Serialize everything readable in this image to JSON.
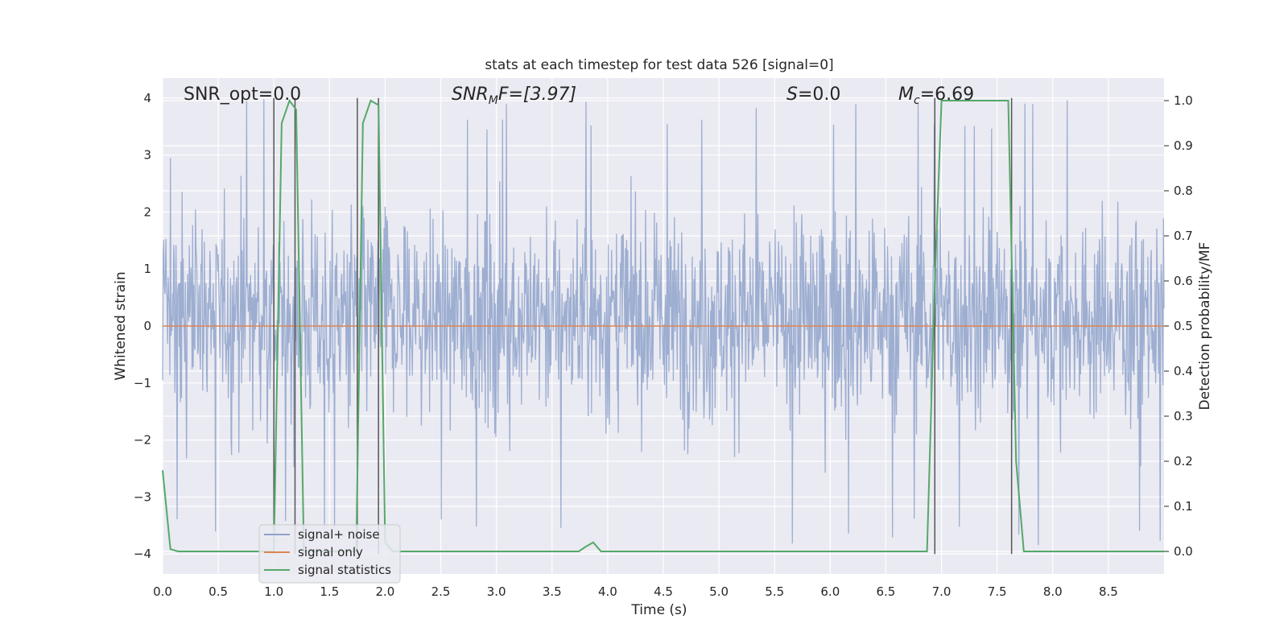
{
  "chart_data": {
    "type": "line",
    "title": "stats at each timestep for test data 526 [signal=0]",
    "xlabel": "Time (s)",
    "ylabel": "Whitened strain",
    "ylabel_right": "Detection probability/MF",
    "xlim": [
      0,
      9
    ],
    "ylim": [
      -4.35,
      4.35
    ],
    "ylim_right": [
      -0.05,
      1.05
    ],
    "x_ticks": [
      "0.0",
      "0.5",
      "1.0",
      "1.5",
      "2.0",
      "2.5",
      "3.0",
      "3.5",
      "4.0",
      "4.5",
      "5.0",
      "5.5",
      "6.0",
      "6.5",
      "7.0",
      "7.5",
      "8.0",
      "8.5"
    ],
    "y_ticks": [
      "4",
      "3",
      "2",
      "1",
      "0",
      "−1",
      "−2",
      "−3",
      "−4"
    ],
    "y_right_ticks": [
      "0.0",
      "0.1",
      "0.2",
      "0.3",
      "0.4",
      "0.5",
      "0.6",
      "0.7",
      "0.8",
      "0.9",
      "1.0"
    ],
    "grid": true,
    "legend_position": "bottom-left",
    "annotations": {
      "snr_opt": "SNR_opt=0.0",
      "snr_mf_main": "SNR",
      "snr_mf_sub": "M",
      "snr_mf_tail": "F=[3.97]",
      "s_main": "S",
      "s_tail": "=0.0",
      "mc_main": "M",
      "mc_sub": "c",
      "mc_tail": "=6.69"
    },
    "series": [
      {
        "name": "signal+ noise",
        "color": "#8fa3cb",
        "description_level": "noise envelope",
        "amplitude_envelope": {
          "typical_max": 2.3,
          "typical_min": -1.8,
          "peak_max": 4.0,
          "peak_min": -3.9
        },
        "x_range": [
          0,
          9
        ]
      },
      {
        "name": "signal only",
        "color": "#dd8452",
        "x": [
          0,
          9
        ],
        "y": [
          0,
          0
        ]
      },
      {
        "name": "signal statistics",
        "color": "#55a868",
        "axis": "right",
        "x": [
          0.0,
          0.07,
          0.14,
          0.9,
          1.0,
          1.07,
          1.14,
          1.2,
          1.27,
          1.74,
          1.8,
          1.87,
          1.94,
          2.0,
          2.07,
          3.74,
          3.8,
          3.87,
          3.94,
          4.0,
          6.87,
          6.94,
          7.0,
          7.07,
          7.6,
          7.67,
          7.74,
          7.8,
          9.0
        ],
        "y": [
          0.18,
          0.005,
          0.0,
          0.0,
          0.0,
          0.95,
          1.0,
          0.98,
          0.0,
          0.0,
          0.95,
          1.0,
          0.99,
          0.02,
          0.0,
          0.0,
          0.01,
          0.02,
          0.0,
          0.0,
          0.0,
          0.6,
          1.0,
          1.0,
          1.0,
          0.2,
          0.0,
          0.0,
          0.0
        ]
      }
    ],
    "vertical_markers": [
      1.0,
      1.19,
      1.75,
      1.94,
      6.94,
      7.63
    ],
    "vertical_marker_color": "#555555"
  }
}
